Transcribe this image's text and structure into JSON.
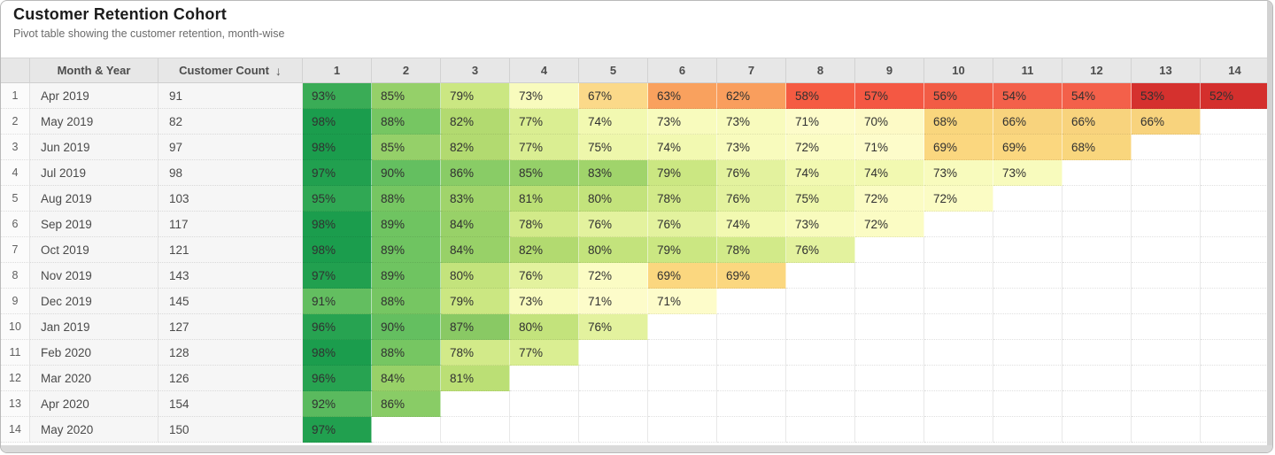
{
  "header": {
    "title": "Customer Retention Cohort",
    "subtitle": "Pivot table showing the customer retention, month-wise"
  },
  "table": {
    "month_year_header": "Month & Year",
    "customer_count_header": "Customer Count",
    "sort_icon": "↓",
    "month_columns": [
      "1",
      "2",
      "3",
      "4",
      "5",
      "6",
      "7",
      "8",
      "9",
      "10",
      "11",
      "12",
      "13",
      "14"
    ]
  },
  "heatmap": {
    "high_color": "#1b9d4d",
    "mid_color": "#fdfcca",
    "low_color": "#d42f2d",
    "color_map": {
      "52": "#d42f2d",
      "53": "#d5312e",
      "54": "#f3604a",
      "56": "#f25c45",
      "57": "#f45843",
      "58": "#f55b42",
      "62": "#f99e5d",
      "63": "#f9a15e",
      "66": "#f8d37d",
      "67": "#fbd989",
      "68": "#f9d67d",
      "69": "#fbd77f",
      "70": "#fdfac6",
      "71": "#fdfcca",
      "72": "#fbfcc4",
      "73": "#f8fbbd",
      "74": "#f2f9b1",
      "75": "#eef7ab",
      "76": "#e3f29e",
      "77": "#daee92",
      "78": "#d2ea89",
      "79": "#cbe782",
      "80": "#c3e37c",
      "81": "#bbdf75",
      "82": "#b2da70",
      "83": "#a0d46b",
      "84": "#98d168",
      "85": "#95d069",
      "86": "#89cc66",
      "87": "#89c964",
      "88": "#76c662",
      "89": "#6fc461",
      "90": "#64bf60",
      "91": "#63be60",
      "92": "#5aba5e",
      "93": "#3aac56",
      "95": "#30a854",
      "96": "#27a351",
      "97": "#21a04f",
      "98": "#1b9d4d"
    }
  },
  "chart_data": {
    "type": "heatmap",
    "title": "Customer Retention Cohort",
    "subtitle": "Pivot table showing the customer retention, month-wise",
    "x_labels": [
      "1",
      "2",
      "3",
      "4",
      "5",
      "6",
      "7",
      "8",
      "9",
      "10",
      "11",
      "12",
      "13",
      "14"
    ],
    "value_unit": "%",
    "legend": "green = high retention, red = low retention",
    "rows": [
      {
        "index": "1",
        "month": "Apr 2019",
        "customer_count": "91",
        "retention": [
          93,
          85,
          79,
          73,
          67,
          63,
          62,
          58,
          57,
          56,
          54,
          54,
          53,
          52
        ]
      },
      {
        "index": "2",
        "month": "May 2019",
        "customer_count": "82",
        "retention": [
          98,
          88,
          82,
          77,
          74,
          73,
          73,
          71,
          70,
          68,
          66,
          66,
          66
        ]
      },
      {
        "index": "3",
        "month": "Jun 2019",
        "customer_count": "97",
        "retention": [
          98,
          85,
          82,
          77,
          75,
          74,
          73,
          72,
          71,
          69,
          69,
          68
        ]
      },
      {
        "index": "4",
        "month": "Jul 2019",
        "customer_count": "98",
        "retention": [
          97,
          90,
          86,
          85,
          83,
          79,
          76,
          74,
          74,
          73,
          73
        ]
      },
      {
        "index": "5",
        "month": "Aug 2019",
        "customer_count": "103",
        "retention": [
          95,
          88,
          83,
          81,
          80,
          78,
          76,
          75,
          72,
          72
        ]
      },
      {
        "index": "6",
        "month": "Sep 2019",
        "customer_count": "117",
        "retention": [
          98,
          89,
          84,
          78,
          76,
          76,
          74,
          73,
          72
        ]
      },
      {
        "index": "7",
        "month": "Oct 2019",
        "customer_count": "121",
        "retention": [
          98,
          89,
          84,
          82,
          80,
          79,
          78,
          76
        ]
      },
      {
        "index": "8",
        "month": "Nov 2019",
        "customer_count": "143",
        "retention": [
          97,
          89,
          80,
          76,
          72,
          69,
          69
        ]
      },
      {
        "index": "9",
        "month": "Dec 2019",
        "customer_count": "145",
        "retention": [
          91,
          88,
          79,
          73,
          71,
          71
        ]
      },
      {
        "index": "10",
        "month": "Jan 2019",
        "customer_count": "127",
        "retention": [
          96,
          90,
          87,
          80,
          76
        ]
      },
      {
        "index": "11",
        "month": "Feb 2020",
        "customer_count": "128",
        "retention": [
          98,
          88,
          78,
          77
        ]
      },
      {
        "index": "12",
        "month": "Mar 2020",
        "customer_count": "126",
        "retention": [
          96,
          84,
          81
        ]
      },
      {
        "index": "13",
        "month": "Apr 2020",
        "customer_count": "154",
        "retention": [
          92,
          86
        ]
      },
      {
        "index": "14",
        "month": "May 2020",
        "customer_count": "150",
        "retention": [
          97
        ]
      }
    ]
  }
}
